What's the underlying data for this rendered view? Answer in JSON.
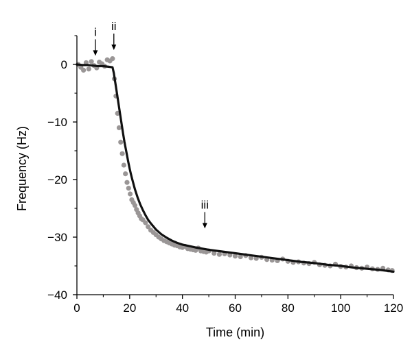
{
  "chart_data": {
    "type": "scatter",
    "xlabel": "Time (min)",
    "ylabel": "Frequency (Hz)",
    "xlim": [
      0,
      120
    ],
    "ylim": [
      -40,
      5
    ],
    "x_ticks": [
      0,
      20,
      40,
      60,
      80,
      100,
      120
    ],
    "y_ticks": [
      0,
      -10,
      -20,
      -30,
      -40
    ],
    "x_tick_labels": [
      "0",
      "20",
      "40",
      "60",
      "80",
      "100",
      "120"
    ],
    "y_tick_labels": [
      "0",
      "−10",
      "−20",
      "−30",
      "−40"
    ],
    "grid": false,
    "legend": "none",
    "colors": {
      "points": "#9a9696",
      "fit": "#111111",
      "axis": "#000000"
    },
    "series": [
      {
        "kind": "scatter",
        "x": [
          0.5,
          1.5,
          2.5,
          3.5,
          4.5,
          5.5,
          6.5,
          7.5,
          8.5,
          9.5,
          10.5,
          11.5,
          12.5,
          13.5,
          14.2,
          14.8,
          15.4,
          16.0,
          16.6,
          17.2,
          17.8,
          18.4,
          19.0,
          19.6,
          20.2,
          20.8,
          21.4,
          22.0,
          22.6,
          23.2,
          23.8,
          24.4,
          25.0,
          26,
          27,
          28,
          29,
          30,
          31,
          32,
          33,
          34,
          35,
          36,
          37,
          38,
          39,
          40,
          41,
          42,
          43,
          44,
          45,
          46,
          47,
          48,
          49,
          50,
          52,
          54,
          56,
          58,
          60,
          62,
          64,
          66,
          68,
          70,
          72,
          74,
          76,
          78,
          80,
          82,
          84,
          86,
          88,
          90,
          92,
          94,
          96,
          98,
          100,
          102,
          104,
          106,
          108,
          110,
          112,
          114,
          116,
          118,
          119.5
        ],
        "y": [
          0.0,
          -0.5,
          -1.0,
          0.3,
          -0.8,
          0.5,
          -0.2,
          -0.6,
          0.4,
          0.1,
          -0.3,
          0.8,
          0.6,
          1.0,
          -2.5,
          -5.5,
          -8.5,
          -11.0,
          -13.5,
          -15.5,
          -17.5,
          -19.0,
          -20.5,
          -21.5,
          -22.5,
          -23.5,
          -24.0,
          -24.5,
          -25.2,
          -25.8,
          -26.3,
          -26.8,
          -27.0,
          -27.5,
          -28.2,
          -28.8,
          -29.2,
          -29.6,
          -30.0,
          -30.3,
          -30.6,
          -30.8,
          -31.0,
          -31.2,
          -31.4,
          -31.5,
          -31.7,
          -31.8,
          -31.6,
          -32.0,
          -32.1,
          -32.2,
          -32.3,
          -31.9,
          -32.4,
          -32.5,
          -32.6,
          -32.4,
          -32.8,
          -33.0,
          -32.9,
          -33.1,
          -33.3,
          -33.4,
          -33.2,
          -33.6,
          -33.7,
          -33.5,
          -33.9,
          -34.0,
          -34.1,
          -33.8,
          -34.2,
          -34.4,
          -34.3,
          -34.5,
          -34.6,
          -34.4,
          -34.8,
          -34.9,
          -35.0,
          -34.7,
          -35.1,
          -35.2,
          -35.0,
          -35.3,
          -35.4,
          -35.2,
          -35.5,
          -35.6,
          -35.4,
          -35.7,
          -35.8
        ]
      },
      {
        "kind": "line",
        "x": [
          0,
          2,
          4,
          6,
          8,
          10,
          12,
          13.5,
          14,
          14.5,
          15,
          15.5,
          16,
          16.5,
          17,
          17.5,
          18,
          18.5,
          19,
          19.5,
          20,
          20.5,
          21,
          22,
          23,
          24,
          25,
          26,
          27,
          28,
          30,
          32,
          34,
          36,
          38,
          40,
          42,
          45,
          50,
          55,
          60,
          65,
          70,
          75,
          80,
          85,
          90,
          95,
          100,
          105,
          110,
          115,
          120
        ],
        "y": [
          0,
          -0.1,
          -0.1,
          -0.2,
          -0.3,
          -0.3,
          -0.4,
          -0.5,
          -1.5,
          -3.0,
          -4.5,
          -6.0,
          -7.5,
          -9.0,
          -10.5,
          -12.0,
          -13.4,
          -14.6,
          -15.8,
          -17.0,
          -18.1,
          -19.1,
          -20.0,
          -21.7,
          -23.1,
          -24.3,
          -25.3,
          -26.2,
          -27.0,
          -27.6,
          -28.7,
          -29.5,
          -30.1,
          -30.6,
          -31.0,
          -31.3,
          -31.5,
          -31.8,
          -32.2,
          -32.5,
          -32.8,
          -33.1,
          -33.4,
          -33.7,
          -34.0,
          -34.3,
          -34.5,
          -34.8,
          -35.0,
          -35.3,
          -35.5,
          -35.7,
          -36.0
        ]
      }
    ],
    "annotations": [
      {
        "label": "i",
        "x": 7,
        "y": 1.5
      },
      {
        "label": "ii",
        "x": 14,
        "y": 2.5
      },
      {
        "label": "iii",
        "x": 48.5,
        "y": -28.5
      }
    ]
  }
}
